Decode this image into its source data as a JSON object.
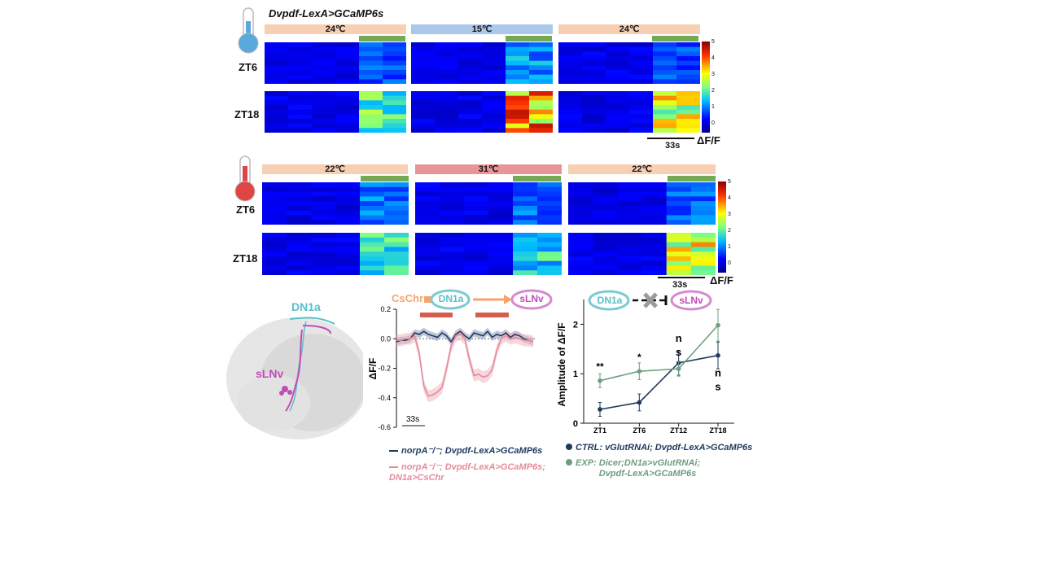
{
  "figure_title": "Dvpdf-LexA>GCaMP6s",
  "panel_top": {
    "conditions": [
      "24℃",
      "15℃",
      "24℃"
    ],
    "condition_colors": [
      "#f7cfb3",
      "#a9c8ea",
      "#f7cfb3"
    ],
    "rows": [
      "ZT6",
      "ZT18"
    ],
    "colorbar_ticks": [
      "5",
      "4",
      "3",
      "2",
      "1",
      "0"
    ],
    "scale_label": "33s",
    "unit_label": "ΔF/F"
  },
  "panel_mid": {
    "conditions": [
      "22℃",
      "31℃",
      "22℃"
    ],
    "condition_colors": [
      "#f7cfb3",
      "#e99598",
      "#f7cfb3"
    ],
    "rows": [
      "ZT6",
      "ZT18"
    ],
    "colorbar_ticks": [
      "5",
      "4",
      "3",
      "2",
      "1",
      "0"
    ],
    "scale_label": "33s",
    "unit_label": "ΔF/F"
  },
  "anatomy": {
    "label_dn1a": "DN1a",
    "label_slnv": "sLNv",
    "dn1a_color": "#5bbfc9",
    "slnv_color": "#c04cb8"
  },
  "panel_trace": {
    "stim_label": "CsChr",
    "node_a": "DN1a",
    "node_b": "sLNv",
    "ylabel": "ΔF/F",
    "scale_label": "33s",
    "legend": [
      {
        "label": "norpA⁻/⁻; Dvpdf-LexA>GCaMP6s",
        "color": "#1e3a5f"
      },
      {
        "label": "norpA⁻/⁻; Dvpdf-LexA>GCaMP6s; DN1a>CsChr",
        "color": "#e38b9a"
      }
    ]
  },
  "panel_amp": {
    "node_a": "DN1a",
    "node_b": "sLNv",
    "ylabel": "Amplitude of ΔF/F",
    "significance": [
      "**",
      "*",
      "ns",
      "ns"
    ],
    "legend": [
      {
        "prefix": "CTRL:",
        "label": "vGlutRNAi; Dvpdf-LexA>GCaMP6s",
        "color": "#1e3a5f"
      },
      {
        "prefix": "EXP:",
        "label": "Dicer;DN1a>vGlutRNAi; Dvpdf-LexA>GCaMP6s",
        "color": "#6e9e80"
      }
    ]
  },
  "chart_data": [
    {
      "type": "line",
      "title": "",
      "xlabel": "",
      "ylabel": "ΔF/F",
      "ylim": [
        -0.6,
        0.2
      ],
      "yticks": [
        "0.2",
        "0.0",
        "-0.2",
        "-0.4",
        "-0.6"
      ],
      "x": [
        0,
        1,
        2,
        3,
        4,
        5,
        6,
        7,
        8,
        9,
        10,
        11,
        12,
        13,
        14,
        15,
        16,
        17,
        18,
        19,
        20,
        21,
        22,
        23,
        24,
        25,
        26,
        27,
        28,
        29,
        30
      ],
      "series": [
        {
          "name": "norpA⁻/⁻; Dvpdf-LexA>GCaMP6s",
          "values": [
            -0.02,
            -0.01,
            -0.01,
            0.0,
            0.04,
            0.03,
            0.05,
            0.03,
            0.02,
            0.01,
            0.04,
            0.02,
            -0.02,
            0.03,
            0.05,
            0.02,
            0.0,
            0.04,
            0.03,
            0.02,
            0.05,
            0.01,
            0.03,
            0.02,
            0.04,
            0.01,
            0.03,
            0.02,
            0.0,
            -0.01,
            -0.02
          ]
        },
        {
          "name": "norpA⁻/⁻; Dvpdf-LexA>GCaMP6s; DN1a>CsChr",
          "values": [
            -0.01,
            -0.01,
            0.0,
            0.0,
            0.02,
            -0.1,
            -0.32,
            -0.39,
            -0.38,
            -0.36,
            -0.33,
            -0.2,
            -0.05,
            0.02,
            0.03,
            0.0,
            -0.14,
            -0.25,
            -0.24,
            -0.26,
            -0.25,
            -0.21,
            -0.08,
            0.0,
            0.02,
            0.0,
            0.01,
            0.0,
            -0.01,
            -0.01,
            -0.02
          ]
        }
      ]
    },
    {
      "type": "line",
      "title": "",
      "xlabel": "",
      "ylabel": "Amplitude of ΔF/F",
      "ylim": [
        0,
        2.5
      ],
      "yticks": [
        "0",
        "1",
        "2"
      ],
      "categories": [
        "ZT1",
        "ZT6",
        "ZT12",
        "ZT18"
      ],
      "series": [
        {
          "name": "CTRL: vGlutRNAi; Dvpdf-LexA>GCaMP6s",
          "values": [
            0.28,
            0.42,
            1.22,
            1.37
          ],
          "errors": [
            0.14,
            0.17,
            0.25,
            0.27
          ]
        },
        {
          "name": "EXP: Dicer;DN1a>vGlutRNAi; Dvpdf-LexA>GCaMP6s",
          "values": [
            0.86,
            1.05,
            1.1,
            1.98
          ],
          "errors": [
            0.14,
            0.17,
            0.15,
            0.32
          ]
        }
      ]
    }
  ]
}
